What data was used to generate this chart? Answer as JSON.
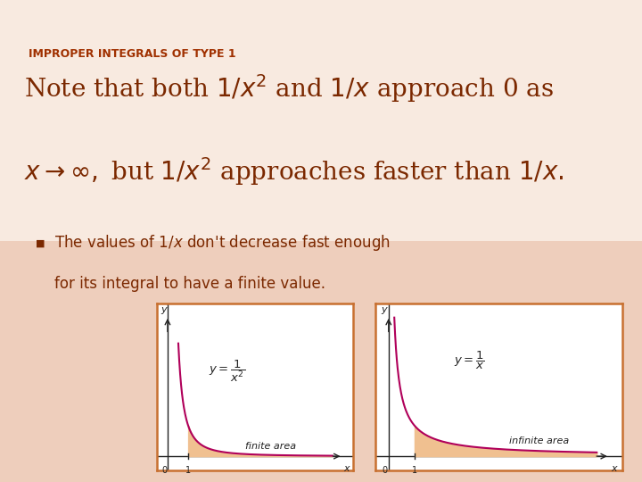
{
  "title": "IMPROPER INTEGRALS OF TYPE 1",
  "title_color": "#A03000",
  "title_fontsize": 9,
  "bg_color_top": "#F8EEE6",
  "bg_color_bottom": "#EEBFA0",
  "main_text_color": "#7B2800",
  "bullet_color": "#7B2800",
  "bullet_fontsize": 12,
  "curve_color": "#B0005A",
  "fill_color": "#F0C090",
  "axes_color": "#222222",
  "label_color": "#222222",
  "graph1_label": "$y = \\dfrac{1}{x^2}$",
  "graph2_label": "$y = \\dfrac{1}{x}$",
  "graph1_area_text": "finite area",
  "graph2_area_text": "infinite area",
  "box_edge_color": "#C87030",
  "title_bar_color": "#E8C8A8"
}
